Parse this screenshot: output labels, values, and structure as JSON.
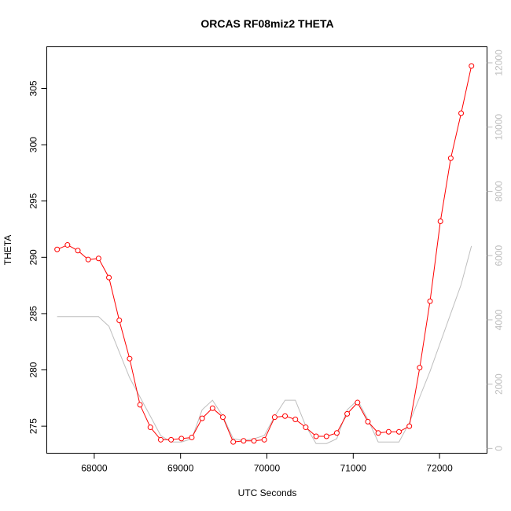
{
  "chart_data": {
    "type": "line",
    "title": "ORCAS RF08miz2 THETA",
    "xlabel": "UTC Seconds",
    "ylabel": "THETA",
    "xlim": [
      67450,
      72550
    ],
    "ylim": [
      272.6,
      308.7
    ],
    "y2lim": [
      -150,
      12500
    ],
    "x_ticks": [
      68000,
      69000,
      70000,
      71000,
      72000
    ],
    "y_ticks": [
      275,
      280,
      285,
      290,
      295,
      300,
      305
    ],
    "y2_ticks": [
      0,
      2000,
      4000,
      6000,
      8000,
      10000,
      12000
    ],
    "grid": false,
    "series": [
      {
        "axis": "left",
        "color": "#ff0000",
        "style": "line+circle",
        "x": [
          67570,
          67690,
          67810,
          67930,
          68050,
          68170,
          68290,
          68410,
          68530,
          68650,
          68770,
          68890,
          69010,
          69130,
          69250,
          69370,
          69490,
          69610,
          69730,
          69850,
          69970,
          70090,
          70210,
          70330,
          70450,
          70570,
          70690,
          70810,
          70930,
          71050,
          71170,
          71290,
          71410,
          71530,
          71650,
          71770,
          71890,
          72010,
          72130,
          72250,
          72370
        ],
        "values": [
          290.7,
          291.1,
          290.6,
          289.8,
          289.9,
          288.2,
          284.4,
          281.0,
          276.9,
          274.9,
          273.8,
          273.8,
          273.9,
          274.0,
          275.7,
          276.6,
          275.8,
          273.6,
          273.7,
          273.7,
          273.8,
          275.8,
          275.9,
          275.6,
          274.9,
          274.1,
          274.1,
          274.4,
          276.1,
          277.1,
          275.4,
          274.4,
          274.5,
          274.5,
          275.0,
          280.2,
          286.1,
          293.2,
          298.8,
          302.8,
          307.0
        ]
      },
      {
        "axis": "right",
        "color": "#bebebe",
        "style": "line",
        "x": [
          67570,
          67690,
          67810,
          67930,
          68050,
          68170,
          68290,
          68410,
          68530,
          68650,
          68770,
          68890,
          69010,
          69130,
          69250,
          69370,
          69490,
          69610,
          69730,
          69850,
          69970,
          70090,
          70210,
          70330,
          70450,
          70570,
          70690,
          70810,
          70930,
          71050,
          71170,
          71290,
          71410,
          71530,
          71650,
          71770,
          71890,
          72010,
          72130,
          72250,
          72370
        ],
        "values": [
          4100,
          4100,
          4100,
          4100,
          4100,
          3800,
          3000,
          2200,
          1600,
          1000,
          400,
          200,
          200,
          300,
          1200,
          1500,
          1000,
          300,
          250,
          300,
          400,
          1000,
          1500,
          1500,
          700,
          150,
          150,
          300,
          1200,
          1500,
          900,
          200,
          200,
          200,
          800,
          1600,
          2400,
          3300,
          4200,
          5100,
          6300
        ]
      }
    ]
  }
}
